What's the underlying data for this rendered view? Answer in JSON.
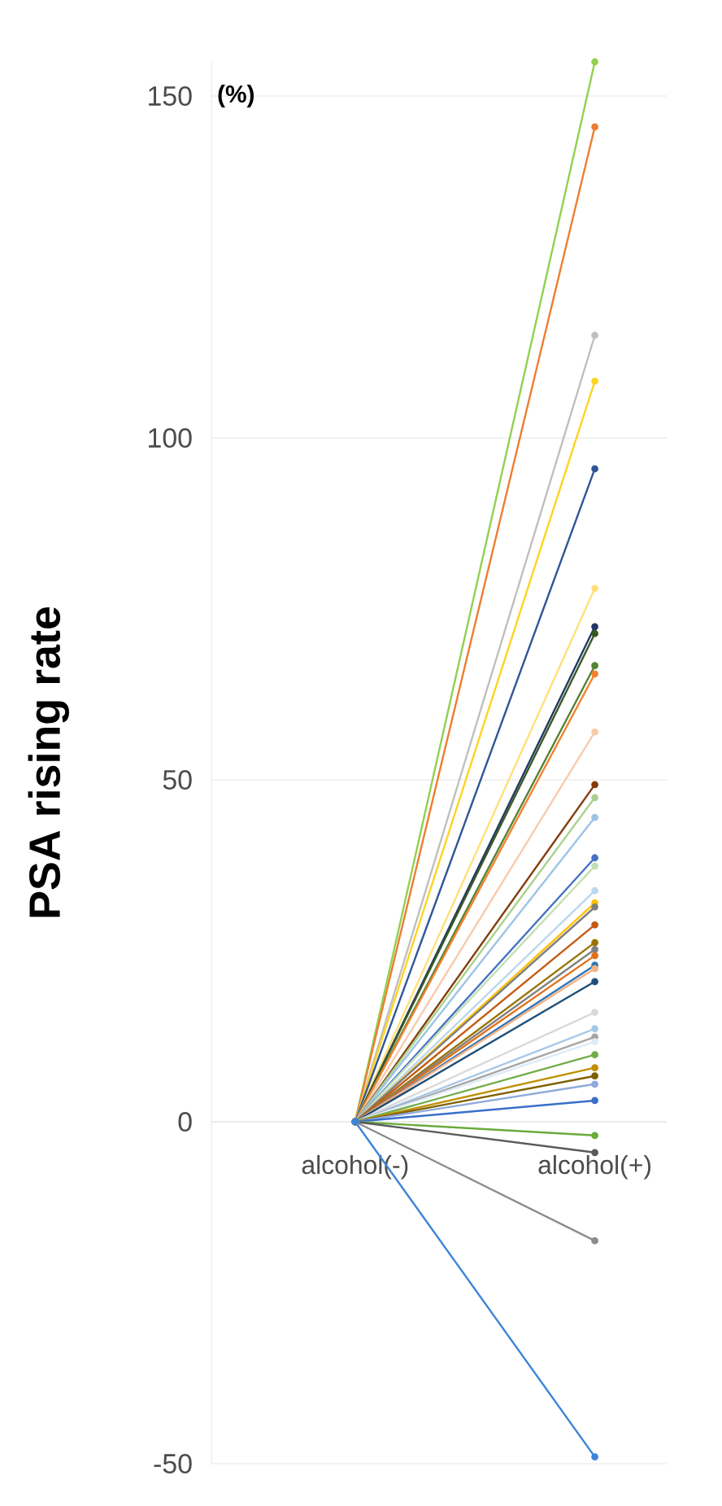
{
  "chart_data": {
    "type": "line",
    "ylabel": "PSA rising rate",
    "annotations": [
      "(%)"
    ],
    "categories": [
      "alcohol(-)",
      "alcohol(+)"
    ],
    "ylim": [
      -50,
      155
    ],
    "yticks": [
      -50,
      0,
      50,
      100,
      150
    ],
    "grid": "y",
    "marker": "circle",
    "line_style": "solid",
    "series": [
      {
        "color": "#92d050",
        "values": [
          0,
          155
        ]
      },
      {
        "color": "#ed7d31",
        "values": [
          0,
          145.5
        ]
      },
      {
        "color": "#bfbfbf",
        "values": [
          0,
          115
        ]
      },
      {
        "color": "#ffd320",
        "values": [
          0,
          108.3
        ]
      },
      {
        "color": "#2f5597",
        "values": [
          0,
          95.5
        ]
      },
      {
        "color": "#ffe07a",
        "values": [
          0,
          78
        ]
      },
      {
        "color": "#203864",
        "values": [
          0,
          72.4
        ]
      },
      {
        "color": "#385723",
        "values": [
          0,
          71.4
        ]
      },
      {
        "color": "#548235",
        "values": [
          0,
          66.7
        ]
      },
      {
        "color": "#f4812f",
        "values": [
          0,
          65.5
        ]
      },
      {
        "color": "#f8cbad",
        "values": [
          0,
          57
        ]
      },
      {
        "color": "#843c0c",
        "values": [
          0,
          49.3
        ]
      },
      {
        "color": "#a9d18e",
        "values": [
          0,
          47.4
        ]
      },
      {
        "color": "#9dc3e6",
        "values": [
          0,
          44.5
        ]
      },
      {
        "color": "#4472c4",
        "values": [
          0,
          38.6
        ]
      },
      {
        "color": "#c5e0b4",
        "values": [
          0,
          37.4
        ]
      },
      {
        "color": "#bdd7ee",
        "values": [
          0,
          33.8
        ]
      },
      {
        "color": "#ffc000",
        "values": [
          0,
          32
        ]
      },
      {
        "color": "#7f7f7f",
        "values": [
          0,
          31.4
        ]
      },
      {
        "color": "#c55a11",
        "values": [
          0,
          28.8
        ]
      },
      {
        "color": "#997300",
        "values": [
          0,
          26.2
        ]
      },
      {
        "color": "#808080",
        "values": [
          0,
          25.2
        ]
      },
      {
        "color": "#e0701a",
        "values": [
          0,
          24.3
        ]
      },
      {
        "color": "#2e75b6",
        "values": [
          0,
          22.9
        ]
      },
      {
        "color": "#f4b183",
        "values": [
          0,
          22.4
        ]
      },
      {
        "color": "#1f4e79",
        "values": [
          0,
          20.5
        ]
      },
      {
        "color": "#d9d9d9",
        "values": [
          0,
          16
        ]
      },
      {
        "color": "#a6c8e8",
        "values": [
          0,
          13.6
        ]
      },
      {
        "color": "#a5a5a5",
        "values": [
          0,
          12.4
        ]
      },
      {
        "color": "#deebf7",
        "values": [
          0,
          11.7
        ]
      },
      {
        "color": "#70ad47",
        "values": [
          0,
          9.8
        ]
      },
      {
        "color": "#bf9000",
        "values": [
          0,
          7.9
        ]
      },
      {
        "color": "#7f6000",
        "values": [
          0,
          6.7
        ]
      },
      {
        "color": "#8faadc",
        "values": [
          0,
          5.5
        ]
      },
      {
        "color": "#3a6fc9",
        "values": [
          0,
          3.1
        ]
      },
      {
        "color": "#6aab3c",
        "values": [
          0,
          -2
        ]
      },
      {
        "color": "#595959",
        "values": [
          0,
          -4.5
        ]
      },
      {
        "color": "#8c8c8c",
        "values": [
          0,
          -17.4
        ]
      },
      {
        "color": "#3d85d8",
        "values": [
          0,
          -49
        ]
      }
    ]
  }
}
